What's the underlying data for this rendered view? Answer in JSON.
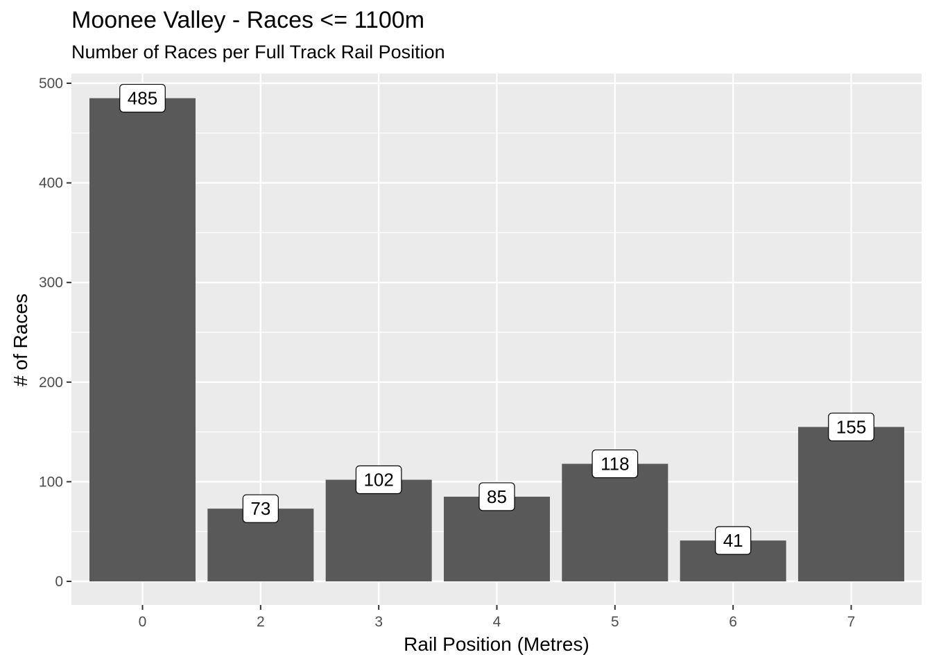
{
  "chart_data": {
    "type": "bar",
    "title": "Moonee Valley - Races <= 1100m",
    "subtitle": "Number of Races per Full Track Rail Position",
    "xlabel": "Rail Position (Metres)",
    "ylabel": "# of Races",
    "categories": [
      "0",
      "2",
      "3",
      "4",
      "5",
      "6",
      "7"
    ],
    "values": [
      485,
      73,
      102,
      85,
      118,
      41,
      155
    ],
    "data_labels": [
      "485",
      "73",
      "102",
      "85",
      "118",
      "41",
      "155"
    ],
    "ylim": [
      0,
      500
    ],
    "yticks": [
      0,
      100,
      200,
      300,
      400,
      500
    ],
    "ytick_labels": [
      "0",
      "100",
      "200",
      "300",
      "400",
      "500"
    ],
    "grid": true,
    "legend": "none",
    "colors": {
      "bar": "#595959",
      "panel": "#ebebeb",
      "grid": "#ffffff",
      "tick_text": "#4d4d4d",
      "label_fill": "#ffffff",
      "label_border": "#000000"
    }
  }
}
